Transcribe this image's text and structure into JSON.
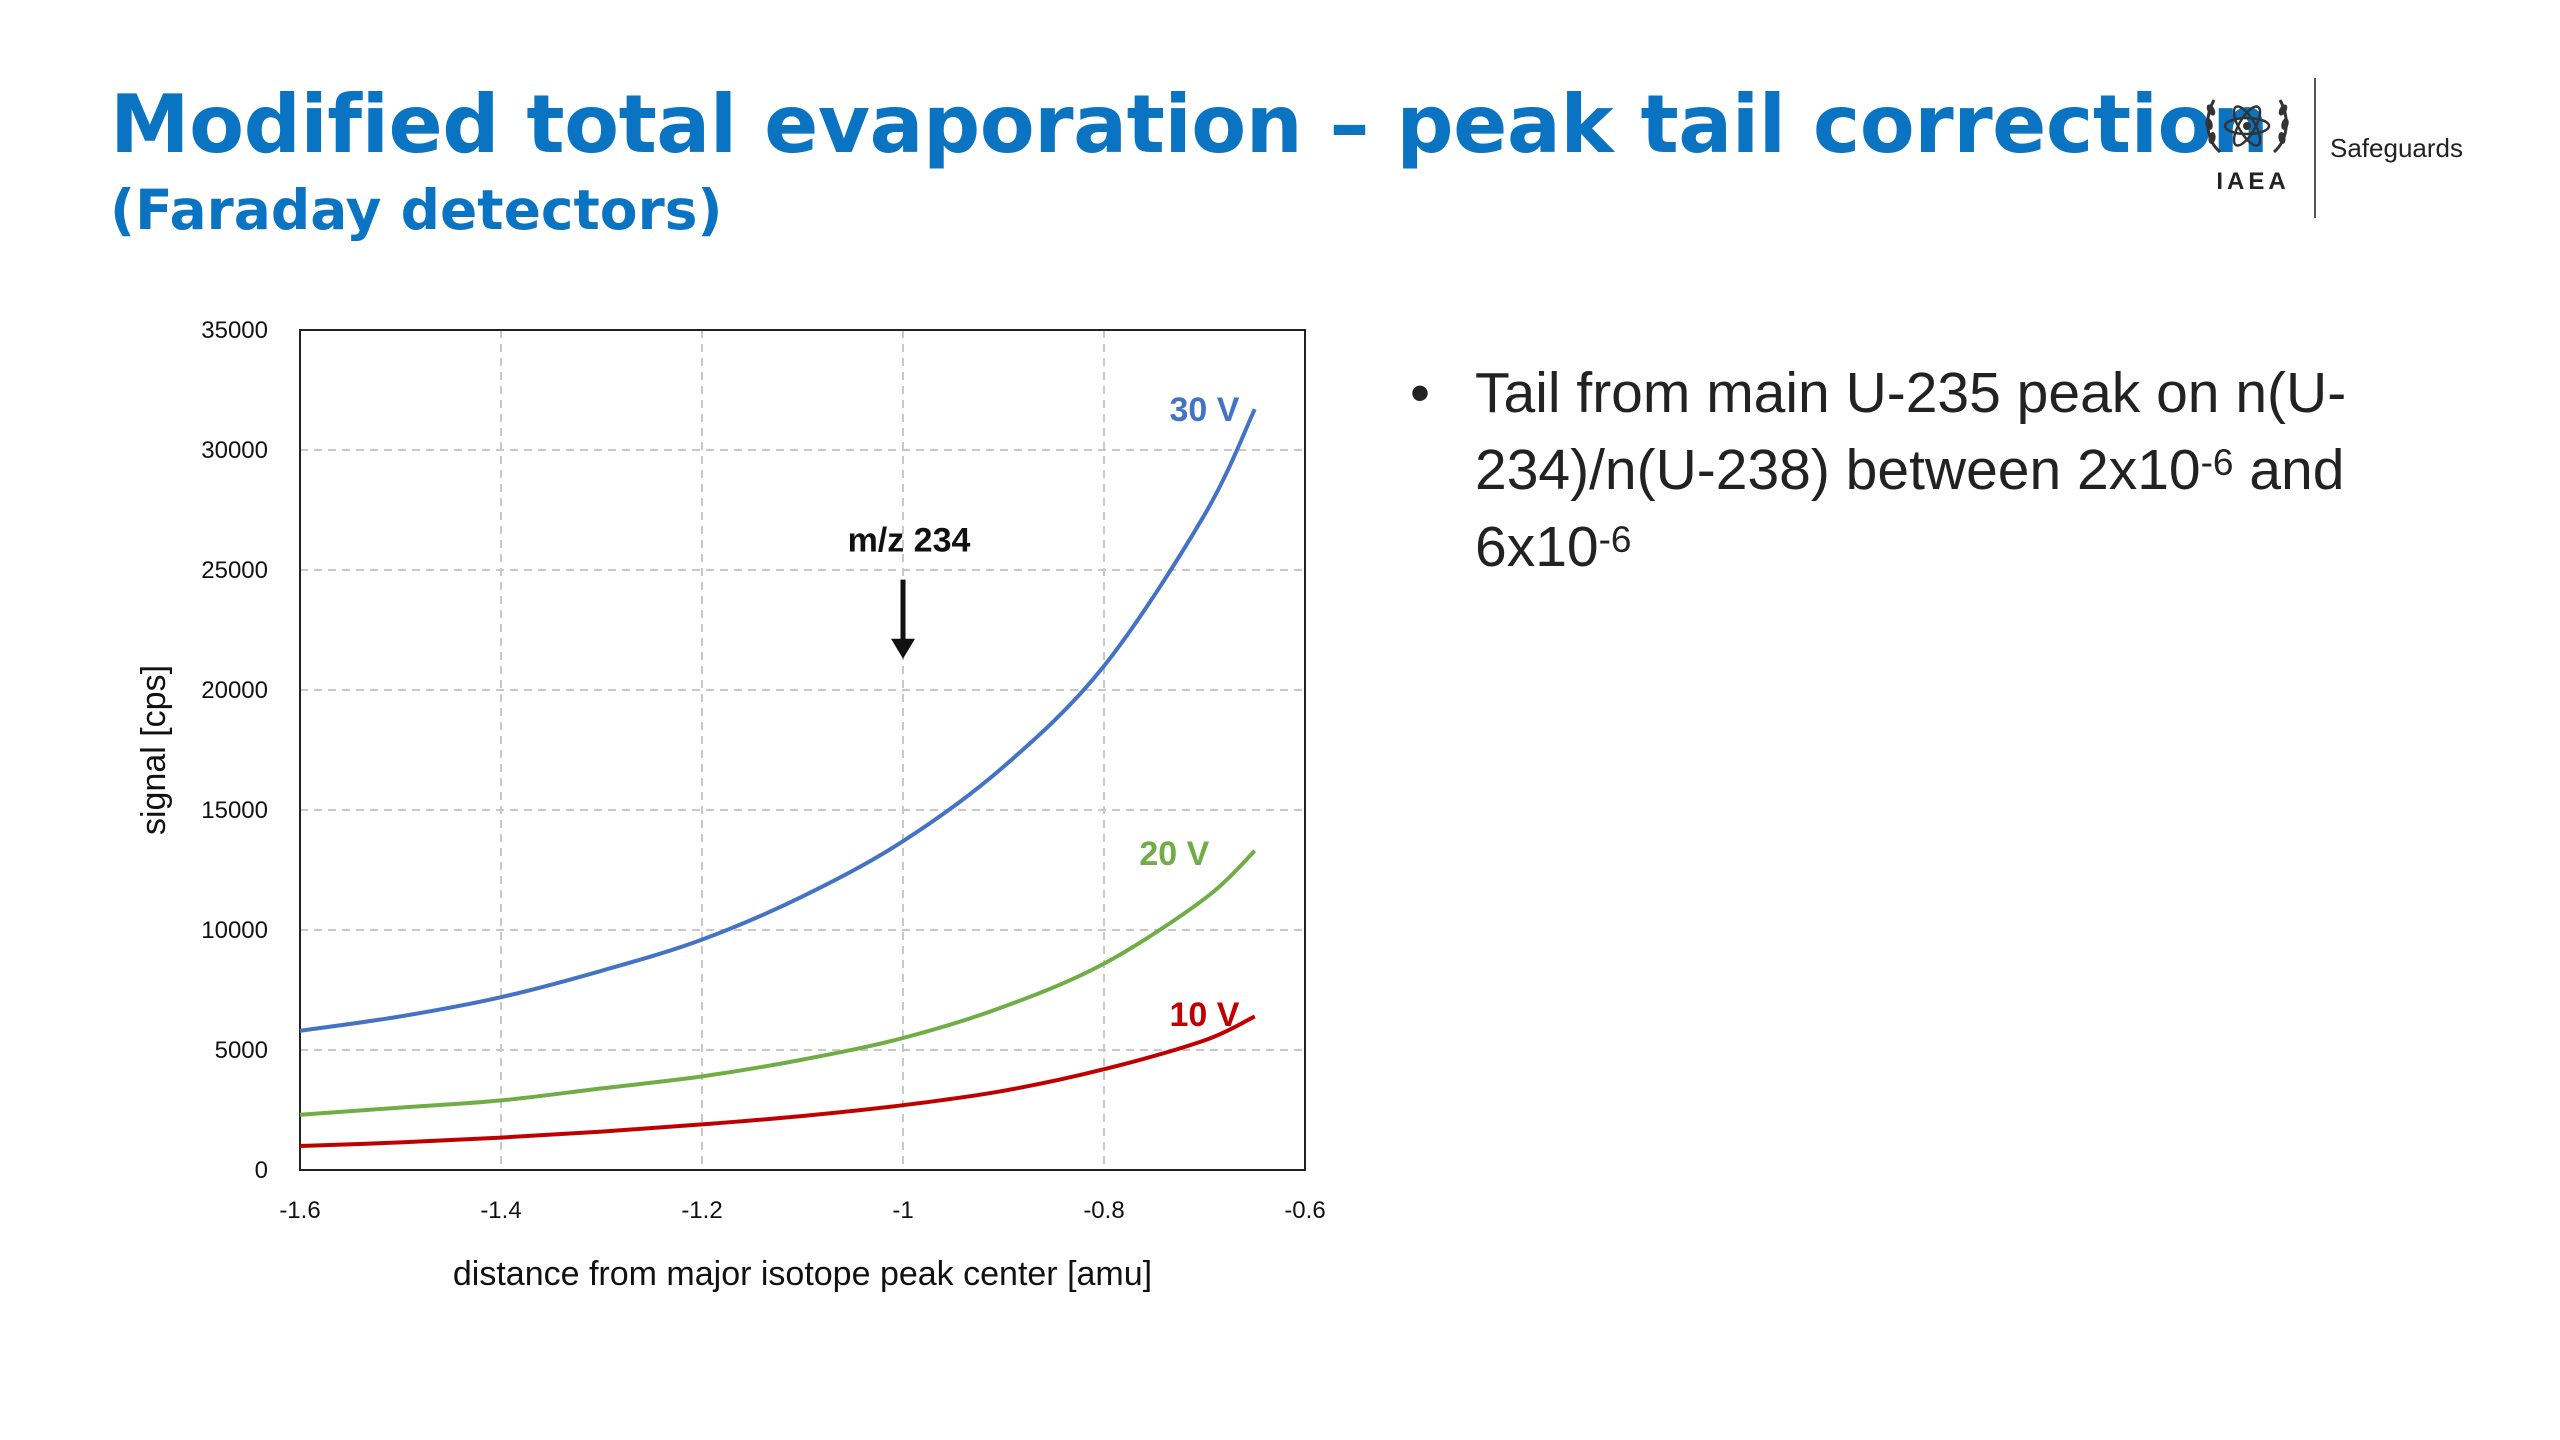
{
  "slide": {
    "title": "Modified total evaporation – peak tail correction",
    "subtitle": "(Faraday detectors)"
  },
  "logo": {
    "org_label": "IAEA",
    "unit_label": "Safeguards",
    "icon": "iaea-emblem-icon"
  },
  "bullets": [
    {
      "marker": "•",
      "parts": [
        {
          "text": "Tail from main U-235 peak on n(U-234)/n(U-238) between 2x10"
        },
        {
          "text": "-6",
          "sup": true
        },
        {
          "text": " and 6x10"
        },
        {
          "text": "-6",
          "sup": true
        }
      ]
    }
  ],
  "chart_data": {
    "type": "line",
    "xlabel": "distance from major isotope peak center [amu]",
    "ylabel": "signal [cps]",
    "xlim": [
      -1.6,
      -0.6
    ],
    "ylim": [
      0,
      35000
    ],
    "xticks": [
      -1.6,
      -1.4,
      -1.2,
      -1,
      -0.8,
      -0.6
    ],
    "yticks": [
      0,
      5000,
      10000,
      15000,
      20000,
      25000,
      30000,
      35000
    ],
    "grid": true,
    "grid_style": "dashed",
    "annotation": {
      "text": "m/z 234",
      "x": -1,
      "arrow_from_y": 24600,
      "arrow_to_y": 21300
    },
    "series": [
      {
        "name": "30 V",
        "color": "#4472c4",
        "label_at": [
          -0.7,
          31200
        ],
        "x": [
          -1.6,
          -1.5,
          -1.4,
          -1.3,
          -1.2,
          -1.1,
          -1.0,
          -0.9,
          -0.8,
          -0.7,
          -0.65
        ],
        "y": [
          5800,
          6400,
          7200,
          8300,
          9600,
          11400,
          13700,
          16800,
          21000,
          27300,
          31700
        ]
      },
      {
        "name": "20 V",
        "color": "#70ad47",
        "label_at": [
          -0.73,
          12700
        ],
        "x": [
          -1.6,
          -1.5,
          -1.4,
          -1.3,
          -1.2,
          -1.1,
          -1.0,
          -0.9,
          -0.8,
          -0.7,
          -0.65
        ],
        "y": [
          2300,
          2600,
          2900,
          3400,
          3900,
          4600,
          5500,
          6800,
          8600,
          11300,
          13300
        ]
      },
      {
        "name": "10 V",
        "color": "#c00000",
        "label_at": [
          -0.7,
          6000
        ],
        "x": [
          -1.6,
          -1.5,
          -1.4,
          -1.3,
          -1.2,
          -1.1,
          -1.0,
          -0.9,
          -0.8,
          -0.7,
          -0.65
        ],
        "y": [
          1000,
          1150,
          1350,
          1600,
          1900,
          2250,
          2700,
          3300,
          4200,
          5400,
          6400
        ]
      }
    ]
  }
}
